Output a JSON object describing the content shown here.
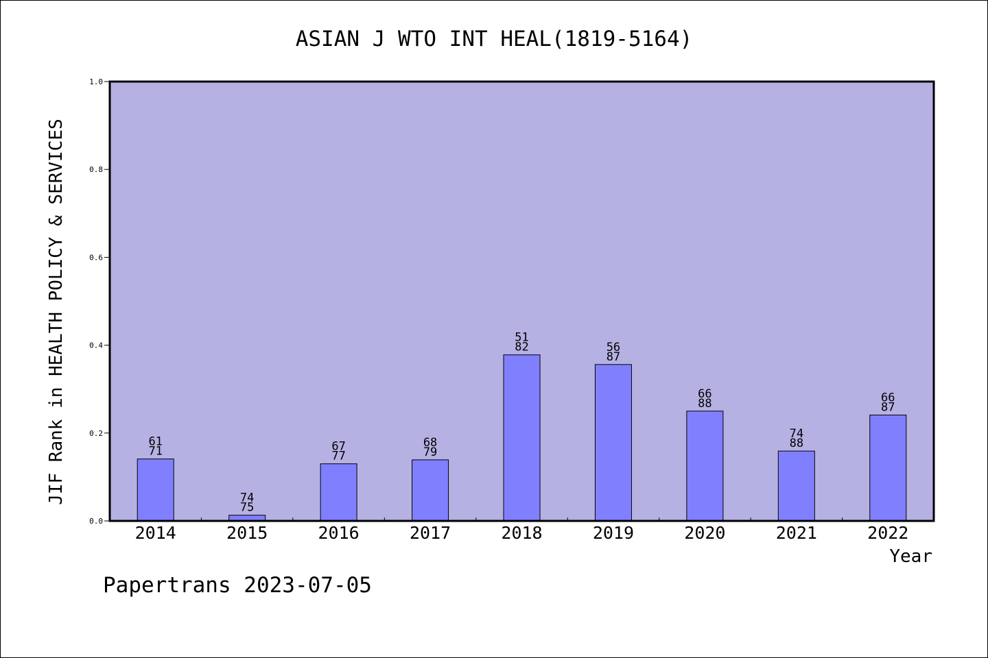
{
  "chart_data": {
    "type": "bar",
    "title": "ASIAN J WTO INT HEAL(1819-5164)",
    "xlabel": "Year",
    "ylabel": "JIF Rank in HEALTH POLICY & SERVICES",
    "ylim": [
      0,
      1.0
    ],
    "yticks": [
      "0.0",
      "0.2",
      "0.4",
      "0.6",
      "0.8",
      "1.0"
    ],
    "grid": false,
    "categories": [
      "2014",
      "2015",
      "2016",
      "2017",
      "2018",
      "2019",
      "2020",
      "2021",
      "2022"
    ],
    "values": [
      0.141,
      0.013,
      0.13,
      0.139,
      0.378,
      0.356,
      0.25,
      0.159,
      0.241
    ],
    "rank": [
      "61",
      "74",
      "67",
      "68",
      "51",
      "56",
      "66",
      "74",
      "66"
    ],
    "total": [
      "71",
      "75",
      "77",
      "79",
      "82",
      "87",
      "88",
      "88",
      "87"
    ],
    "colors": {
      "plot_bg": "#b6b1e3",
      "bar": "#8080ff",
      "axis": "#000000"
    }
  },
  "footer": {
    "text": "Papertrans 2023-07-05"
  }
}
